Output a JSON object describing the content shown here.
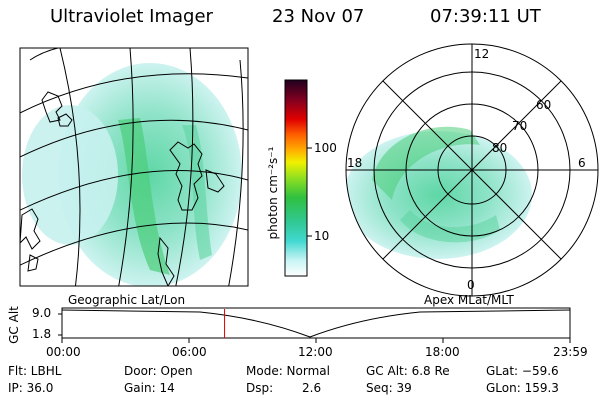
{
  "header": {
    "title": "Ultraviolet Imager",
    "date": "23 Nov 07",
    "time": "07:39:11 UT"
  },
  "colorbar": {
    "unit_label": "photon cm⁻²s⁻¹",
    "ticks": [
      "100",
      "10"
    ]
  },
  "panels": {
    "geographic_label": "Geographic Lat/Lon",
    "apex_label": "Apex MLat/MLT"
  },
  "polar": {
    "lat_labels": [
      "80",
      "70",
      "60"
    ],
    "mlt_labels": [
      "12",
      "18",
      "6",
      "0"
    ]
  },
  "timeline": {
    "axis_label": "GC Alt",
    "y_ticks": [
      "9.0",
      "1.8"
    ],
    "time_ticks": [
      "00:00",
      "06:00",
      "12:00",
      "18:00",
      "23:59"
    ],
    "marker_fraction": 0.32
  },
  "status": {
    "flt": "Flt: LBHL",
    "ip": "IP: 36.0",
    "door": "Door: Open",
    "gain": "Gain: 14",
    "mode": "Mode: Normal",
    "dsp_label": "Dsp:",
    "dsp_value": "2.6",
    "gc_alt": "GC Alt: 6.8 Re",
    "seq": "Seq: 39",
    "glat": "GLat: −59.6",
    "glon": "GLon: 159.3"
  },
  "colors": {
    "marker": "#e00000",
    "grid": "#000000"
  }
}
